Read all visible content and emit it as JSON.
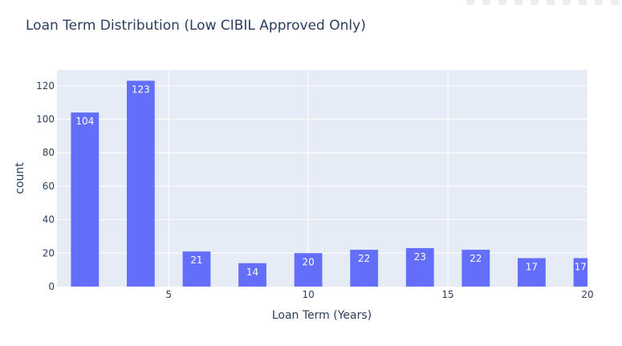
{
  "chart_data": {
    "type": "bar",
    "title": "Loan Term Distribution (Low CIBIL Approved Only)",
    "xlabel": "Loan Term (Years)",
    "ylabel": "count",
    "x": [
      2,
      4,
      6,
      8,
      10,
      12,
      14,
      16,
      18,
      20
    ],
    "values": [
      104,
      123,
      21,
      14,
      20,
      22,
      23,
      22,
      17,
      17
    ],
    "labels": [
      "104",
      "123",
      "21",
      "14",
      "20",
      "22",
      "23",
      "22",
      "17",
      "17"
    ],
    "xticks": [
      5,
      10,
      15,
      20
    ],
    "yticks": [
      0,
      20,
      40,
      60,
      80,
      100,
      120
    ],
    "xlim": [
      1,
      20
    ],
    "ylim": [
      0,
      129.5
    ],
    "grid": true,
    "colors": {
      "bar": "#636efa",
      "plot_bg": "#e5ecf6",
      "grid": "#ffffff",
      "text": "#2a3f5f"
    }
  },
  "modebar": {
    "icons": [
      "camera-icon",
      "zoom-icon",
      "pan-icon",
      "box-select-icon",
      "lasso-icon",
      "zoom-in-icon",
      "zoom-out-icon",
      "autoscale-icon",
      "reset-icon",
      "plotly-logo-icon"
    ]
  }
}
